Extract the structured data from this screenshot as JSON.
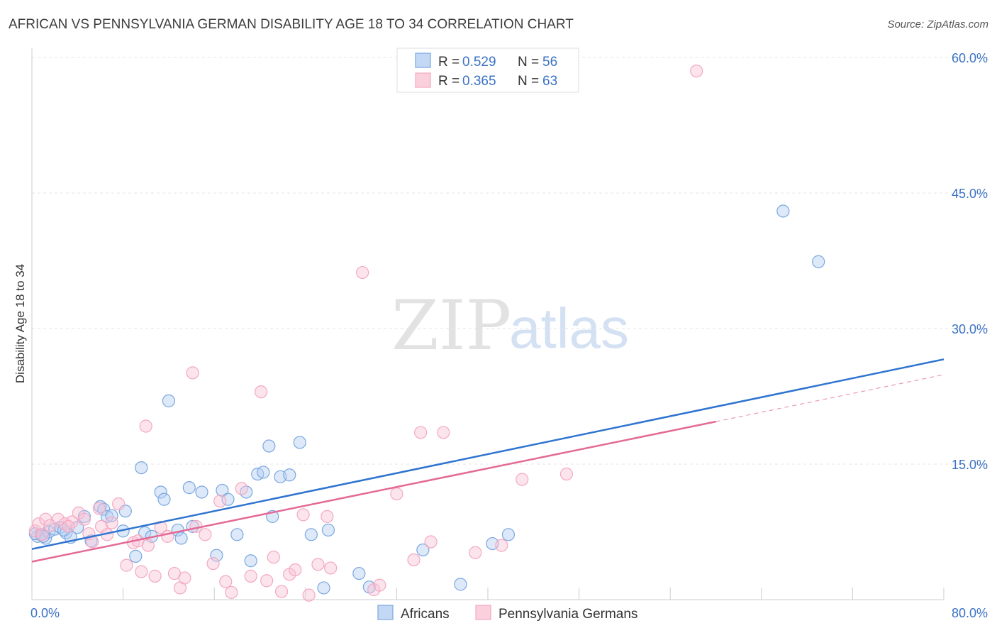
{
  "chart_data": {
    "type": "scatter",
    "title": "AFRICAN VS PENNSYLVANIA GERMAN DISABILITY AGE 18 TO 34 CORRELATION CHART",
    "source": "Source: ZipAtlas.com",
    "ylabel": "Disability Age 18 to 34",
    "xlim": [
      0,
      80
    ],
    "ylim": [
      0,
      60
    ],
    "x_tick_labels": [
      "0.0%",
      "80.0%"
    ],
    "y_ticks": [
      15,
      30,
      45,
      60
    ],
    "y_tick_labels": [
      "15.0%",
      "30.0%",
      "45.0%",
      "60.0%"
    ],
    "grid": true,
    "legend_placement": "top-center",
    "watermark": {
      "zip": "ZIP",
      "atlas": "atlas"
    },
    "legend": {
      "rows": [
        {
          "r_label": "R =",
          "r_value": "0.529",
          "n_label": "N =",
          "n_value": "56"
        },
        {
          "r_label": "R =",
          "r_value": "0.365",
          "n_label": "N =",
          "n_value": "63"
        }
      ]
    },
    "series": [
      {
        "name": "Africans",
        "color": "#7aa7e0",
        "line_color": "#2f74d0",
        "trend": {
          "x": [
            0,
            80
          ],
          "y": [
            5.6,
            26.6
          ]
        },
        "points": [
          [
            0.5,
            7.0
          ],
          [
            0.8,
            7.2
          ],
          [
            1.2,
            6.8
          ],
          [
            1.5,
            7.5
          ],
          [
            2.0,
            7.8
          ],
          [
            2.5,
            8.0
          ],
          [
            3.0,
            7.4
          ],
          [
            3.4,
            6.9
          ],
          [
            4.0,
            8.0
          ],
          [
            4.6,
            9.2
          ],
          [
            5.2,
            6.5
          ],
          [
            6.0,
            10.3
          ],
          [
            6.3,
            10.0
          ],
          [
            6.6,
            9.2
          ],
          [
            7.0,
            9.3
          ],
          [
            8.0,
            7.6
          ],
          [
            8.2,
            9.8
          ],
          [
            9.1,
            4.8
          ],
          [
            9.6,
            14.6
          ],
          [
            9.9,
            7.4
          ],
          [
            10.5,
            7.0
          ],
          [
            11.3,
            11.9
          ],
          [
            11.6,
            11.1
          ],
          [
            12.0,
            22.0
          ],
          [
            12.8,
            7.7
          ],
          [
            13.1,
            6.8
          ],
          [
            13.8,
            12.4
          ],
          [
            14.1,
            8.1
          ],
          [
            14.9,
            11.9
          ],
          [
            16.2,
            4.9
          ],
          [
            16.7,
            12.1
          ],
          [
            17.2,
            11.1
          ],
          [
            18.0,
            7.2
          ],
          [
            18.8,
            11.9
          ],
          [
            19.2,
            4.3
          ],
          [
            19.8,
            13.9
          ],
          [
            20.3,
            14.1
          ],
          [
            20.8,
            17.0
          ],
          [
            21.1,
            9.2
          ],
          [
            21.8,
            13.6
          ],
          [
            22.6,
            13.8
          ],
          [
            23.5,
            17.4
          ],
          [
            24.5,
            7.2
          ],
          [
            25.6,
            1.3
          ],
          [
            26.0,
            7.7
          ],
          [
            28.7,
            2.9
          ],
          [
            29.6,
            1.4
          ],
          [
            34.3,
            5.5
          ],
          [
            37.6,
            1.7
          ],
          [
            40.4,
            6.2
          ],
          [
            41.8,
            7.2
          ],
          [
            65.9,
            43.0
          ],
          [
            69.0,
            37.4
          ],
          [
            0.3,
            7.3
          ],
          [
            1.0,
            7.0
          ],
          [
            2.8,
            7.7
          ]
        ]
      },
      {
        "name": "Pennsylvania Germans",
        "color": "#f4a8c0",
        "line_color": "#e46a96",
        "trend": {
          "x": [
            0,
            60
          ],
          "y": [
            4.2,
            19.7
          ]
        },
        "trend_dashed": {
          "x": [
            60,
            80
          ],
          "y": [
            19.7,
            24.9
          ]
        },
        "points": [
          [
            0.3,
            7.6
          ],
          [
            0.6,
            8.4
          ],
          [
            1.2,
            8.9
          ],
          [
            1.6,
            8.2
          ],
          [
            2.3,
            8.9
          ],
          [
            2.9,
            8.4
          ],
          [
            3.5,
            8.6
          ],
          [
            4.1,
            9.6
          ],
          [
            4.6,
            8.9
          ],
          [
            5.0,
            7.3
          ],
          [
            5.3,
            6.4
          ],
          [
            5.9,
            10.1
          ],
          [
            6.1,
            8.1
          ],
          [
            6.6,
            7.2
          ],
          [
            7.0,
            8.5
          ],
          [
            7.6,
            10.6
          ],
          [
            8.3,
            3.8
          ],
          [
            8.9,
            6.3
          ],
          [
            9.3,
            6.5
          ],
          [
            9.6,
            3.1
          ],
          [
            10.0,
            19.2
          ],
          [
            10.2,
            6.0
          ],
          [
            10.8,
            2.6
          ],
          [
            11.3,
            8.0
          ],
          [
            11.9,
            7.0
          ],
          [
            12.5,
            2.9
          ],
          [
            13.0,
            1.3
          ],
          [
            13.4,
            2.4
          ],
          [
            14.1,
            25.1
          ],
          [
            14.4,
            8.1
          ],
          [
            15.2,
            7.2
          ],
          [
            15.9,
            4.0
          ],
          [
            16.5,
            10.9
          ],
          [
            17.0,
            2.0
          ],
          [
            17.5,
            0.8
          ],
          [
            18.4,
            12.3
          ],
          [
            19.2,
            2.6
          ],
          [
            20.1,
            23.0
          ],
          [
            20.6,
            2.1
          ],
          [
            21.2,
            4.7
          ],
          [
            21.9,
            0.9
          ],
          [
            22.6,
            2.8
          ],
          [
            23.1,
            3.3
          ],
          [
            23.8,
            9.4
          ],
          [
            24.3,
            0.5
          ],
          [
            25.1,
            3.9
          ],
          [
            25.9,
            9.2
          ],
          [
            26.2,
            3.5
          ],
          [
            29.0,
            36.2
          ],
          [
            30.0,
            1.1
          ],
          [
            30.5,
            1.6
          ],
          [
            32.0,
            11.7
          ],
          [
            33.5,
            4.4
          ],
          [
            34.1,
            18.5
          ],
          [
            35.0,
            6.4
          ],
          [
            36.1,
            18.5
          ],
          [
            38.9,
            5.2
          ],
          [
            41.2,
            6.0
          ],
          [
            43.0,
            13.3
          ],
          [
            46.9,
            13.9
          ],
          [
            58.3,
            58.5
          ],
          [
            0.9,
            7.2
          ],
          [
            3.2,
            8.1
          ]
        ]
      }
    ]
  }
}
